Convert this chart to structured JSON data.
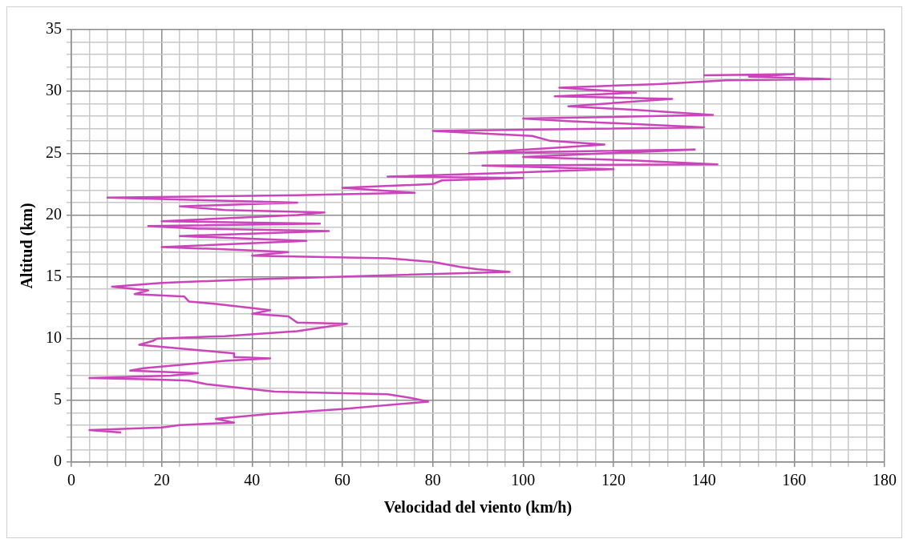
{
  "chart_data": {
    "type": "line",
    "xlabel": "Velocidad del viento (km/h)",
    "ylabel": "Altitud (km)",
    "xlim": [
      0,
      180
    ],
    "ylim": [
      0,
      35
    ],
    "xticks": [
      0,
      {
        "value": 4,
        "label": null
      },
      {
        "value": 8,
        "label": null
      },
      {
        "value": 12,
        "label": null
      },
      {
        "value": 16,
        "label": null
      },
      20,
      {
        "value": 24,
        "label": null
      },
      {
        "value": 28,
        "label": null
      },
      {
        "value": 32,
        "label": null
      },
      {
        "value": 36,
        "label": null
      },
      40,
      {
        "value": 44,
        "label": null
      },
      {
        "value": 48,
        "label": null
      },
      {
        "value": 52,
        "label": null
      },
      {
        "value": 56,
        "label": null
      },
      60,
      {
        "value": 64,
        "label": null
      },
      {
        "value": 68,
        "label": null
      },
      {
        "value": 72,
        "label": null
      },
      {
        "value": 76,
        "label": null
      },
      80,
      {
        "value": 84,
        "label": null
      },
      {
        "value": 88,
        "label": null
      },
      {
        "value": 92,
        "label": null
      },
      {
        "value": 96,
        "label": null
      },
      100,
      {
        "value": 104,
        "label": null
      },
      {
        "value": 108,
        "label": null
      },
      {
        "value": 112,
        "label": null
      },
      {
        "value": 116,
        "label": null
      },
      120,
      {
        "value": 124,
        "label": null
      },
      {
        "value": 128,
        "label": null
      },
      {
        "value": 132,
        "label": null
      },
      {
        "value": 136,
        "label": null
      },
      140,
      {
        "value": 144,
        "label": null
      },
      {
        "value": 148,
        "label": null
      },
      {
        "value": 152,
        "label": null
      },
      {
        "value": 156,
        "label": null
      },
      160,
      {
        "value": 164,
        "label": null
      },
      {
        "value": 168,
        "label": null
      },
      {
        "value": 172,
        "label": null
      },
      {
        "value": 176,
        "label": null
      },
      180
    ],
    "yticks": [
      0,
      {
        "value": 1,
        "label": null
      },
      {
        "value": 2,
        "label": null
      },
      {
        "value": 3,
        "label": null
      },
      {
        "value": 4,
        "label": null
      },
      5,
      {
        "value": 6,
        "label": null
      },
      {
        "value": 7,
        "label": null
      },
      {
        "value": 8,
        "label": null
      },
      {
        "value": 9,
        "label": null
      },
      10,
      {
        "value": 11,
        "label": null
      },
      {
        "value": 12,
        "label": null
      },
      {
        "value": 13,
        "label": null
      },
      {
        "value": 14,
        "label": null
      },
      15,
      {
        "value": 16,
        "label": null
      },
      {
        "value": 17,
        "label": null
      },
      {
        "value": 18,
        "label": null
      },
      {
        "value": 19,
        "label": null
      },
      20,
      {
        "value": 21,
        "label": null
      },
      {
        "value": 22,
        "label": null
      },
      {
        "value": 23,
        "label": null
      },
      {
        "value": 24,
        "label": null
      },
      25,
      {
        "value": 26,
        "label": null
      },
      {
        "value": 27,
        "label": null
      },
      {
        "value": 28,
        "label": null
      },
      {
        "value": 29,
        "label": null
      },
      30,
      {
        "value": 31,
        "label": null
      },
      {
        "value": 32,
        "label": null
      },
      {
        "value": 33,
        "label": null
      },
      {
        "value": 34,
        "label": null
      },
      35
    ],
    "grid": true,
    "legend": false,
    "marker": "none",
    "line_style": "solid",
    "series": [
      {
        "color": "#cc44bb",
        "x": [
          11,
          4,
          20,
          24,
          36,
          32,
          44,
          60,
          79,
          75,
          70,
          45,
          30,
          26,
          18,
          4,
          22,
          28,
          13,
          16,
          34,
          44,
          36,
          36,
          15,
          18,
          19,
          34,
          50,
          61,
          50,
          48,
          40,
          44,
          32,
          26,
          25,
          14,
          17,
          9,
          20,
          40,
          97,
          90,
          86,
          80,
          70,
          40,
          48,
          36,
          20,
          52,
          24,
          57,
          28,
          17,
          55,
          20,
          50,
          56,
          34,
          24,
          50,
          8,
          50,
          76,
          60,
          80,
          82,
          100,
          70,
          96,
          110,
          120,
          91,
          143,
          125,
          100,
          138,
          88,
          110,
          118,
          106,
          102,
          80,
          140,
          110,
          100,
          142,
          125,
          110,
          133,
          107,
          125,
          108,
          130,
          145,
          168,
          150,
          160,
          140
        ],
        "values": [
          2.4,
          2.6,
          2.8,
          3.0,
          3.2,
          3.5,
          3.9,
          4.3,
          4.9,
          5.2,
          5.5,
          5.7,
          6.3,
          6.6,
          6.7,
          6.8,
          7.0,
          7.2,
          7.4,
          7.6,
          8.2,
          8.4,
          8.5,
          8.8,
          9.5,
          9.8,
          10.0,
          10.2,
          10.6,
          11.2,
          11.3,
          11.8,
          12.0,
          12.3,
          12.8,
          13.0,
          13.4,
          13.6,
          13.9,
          14.2,
          14.5,
          14.8,
          15.4,
          15.6,
          15.8,
          16.2,
          16.5,
          16.7,
          17.0,
          17.2,
          17.4,
          17.9,
          18.3,
          18.7,
          18.9,
          19.1,
          19.3,
          19.5,
          20.0,
          20.2,
          20.4,
          20.7,
          21.0,
          21.4,
          21.6,
          21.8,
          22.2,
          22.5,
          22.8,
          23.0,
          23.1,
          23.4,
          23.6,
          23.7,
          24.0,
          24.1,
          24.4,
          24.7,
          25.3,
          25.0,
          25.5,
          25.7,
          26.0,
          26.4,
          26.8,
          27.1,
          27.6,
          27.8,
          28.1,
          28.5,
          28.8,
          29.4,
          29.6,
          29.9,
          30.3,
          30.6,
          30.9,
          31.0,
          31.2,
          31.4,
          31.3
        ]
      }
    ]
  }
}
